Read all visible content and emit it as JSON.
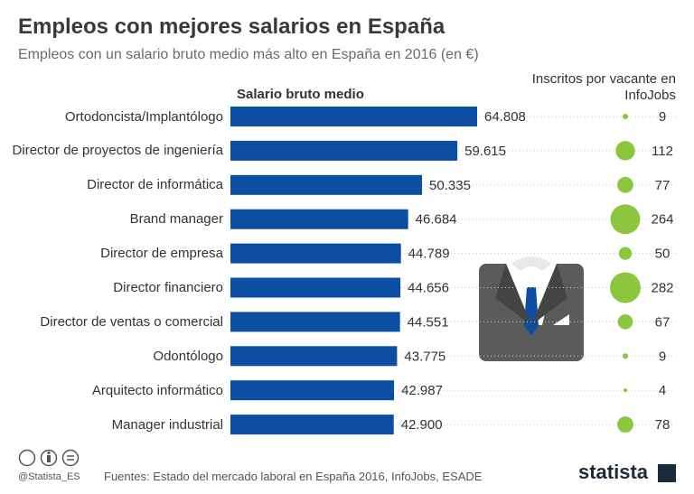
{
  "chart_data": {
    "type": "bar",
    "title": "Empleos con mejores salarios en España",
    "subtitle": "Empleos con un salario bruto medio más alto en España en 2016 (en €)",
    "categories": [
      "Ortodoncista/Implantólogo",
      "Director de proyectos de ingeniería",
      "Director de informática",
      "Brand manager",
      "Director de empresa",
      "Director financiero",
      "Director de ventas o comercial",
      "Odontólogo",
      "Arquitecto informático",
      "Manager industrial"
    ],
    "series": [
      {
        "name": "Salario bruto medio",
        "color": "#0b4ea2",
        "values": [
          64808,
          59615,
          50335,
          46684,
          44789,
          44656,
          44551,
          43775,
          42987,
          42900
        ],
        "value_labels": [
          "64.808",
          "59.615",
          "50.335",
          "46.684",
          "44.789",
          "44.656",
          "44.551",
          "43.775",
          "42.987",
          "42.900"
        ]
      },
      {
        "name": "Inscritos por vacante en InfoJobs",
        "color": "#8cc63f",
        "type": "bubble",
        "values": [
          9,
          112,
          77,
          264,
          50,
          282,
          67,
          9,
          4,
          78
        ]
      }
    ]
  },
  "footer": {
    "handle": "@Statista_ES",
    "source": "Fuentes: Estado del mercado laboral en España 2016, InfoJobs, ESADE",
    "brand": "statista"
  }
}
